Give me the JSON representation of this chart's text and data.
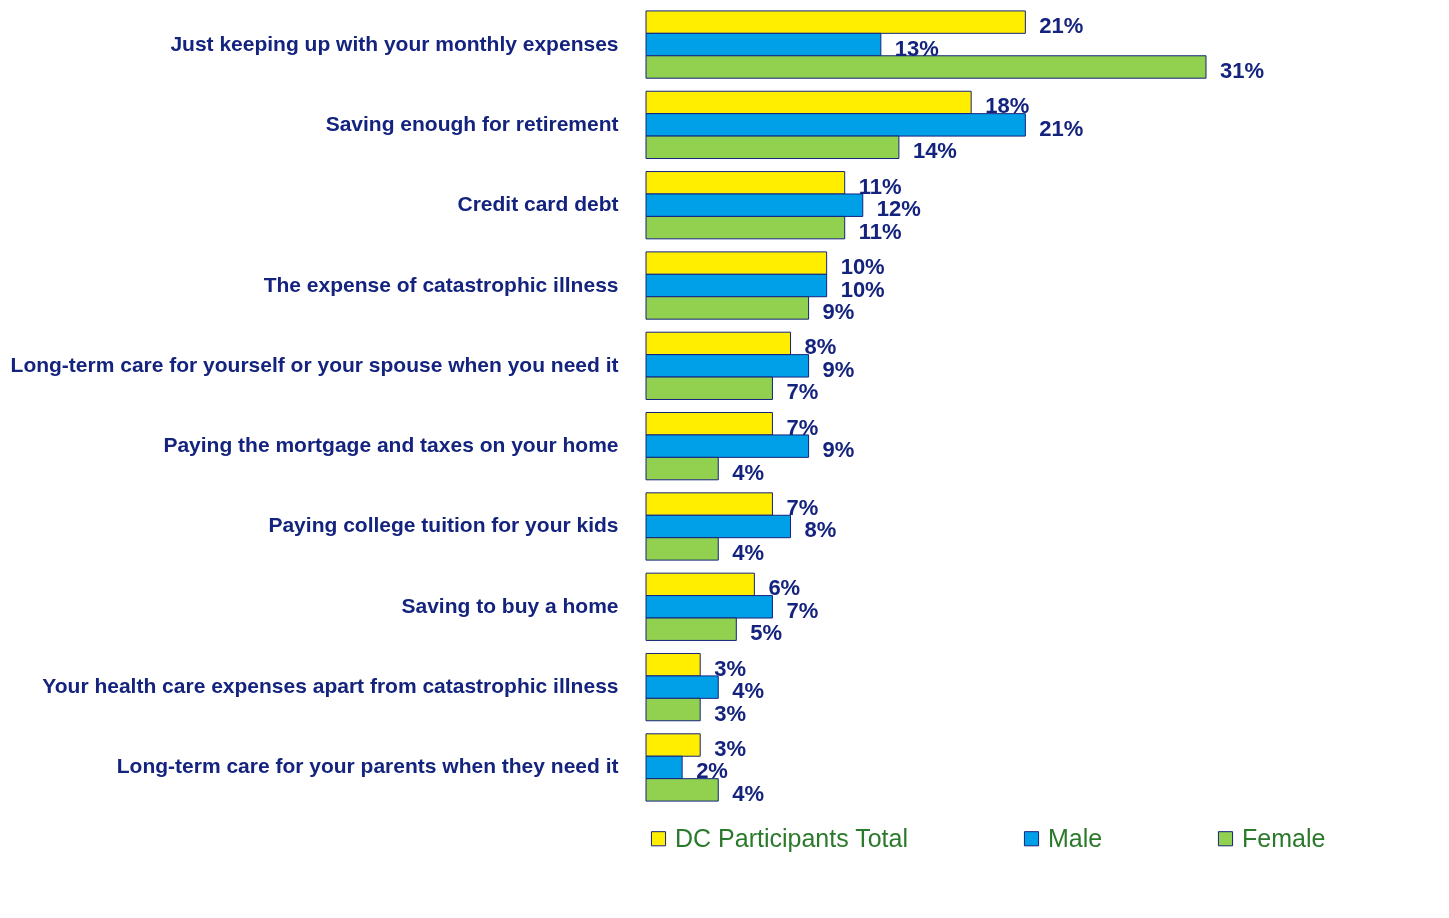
{
  "chart_data": {
    "type": "bar",
    "orientation": "horizontal",
    "categories": [
      "Just keeping up with your monthly expenses",
      "Saving enough for retirement",
      "Credit card debt",
      "The expense of catastrophic illness",
      "Long-term care for yourself or your spouse when you need it",
      "Paying the mortgage and taxes on your home",
      "Paying college tuition for your kids",
      "Saving to buy a home",
      "Your health care expenses apart from catastrophic illness",
      "Long-term care for your parents when they need it"
    ],
    "series": [
      {
        "name": "DC Participants Total",
        "color": "#ffee00",
        "values": [
          21,
          18,
          11,
          10,
          8,
          7,
          7,
          6,
          3,
          3
        ],
        "value_labels": [
          "21%",
          "18%",
          "11%",
          "10%",
          "8%",
          "7%",
          "7%",
          "6%",
          "3%",
          "3%"
        ]
      },
      {
        "name": "Male",
        "color": "#00a0e8",
        "values": [
          13,
          21,
          12,
          10,
          9,
          9,
          8,
          7,
          4,
          2
        ],
        "value_labels": [
          "13%",
          "21%",
          "12%",
          "10%",
          "9%",
          "9%",
          "8%",
          "7%",
          "4%",
          "2%"
        ]
      },
      {
        "name": "Female",
        "color": "#92d050",
        "values": [
          31,
          14,
          11,
          9,
          7,
          4,
          4,
          5,
          3,
          4
        ],
        "value_labels": [
          "31%",
          "14%",
          "11%",
          "9%",
          "7%",
          "4%",
          "4%",
          "5%",
          "3%",
          "4%"
        ]
      }
    ],
    "tick_labels": "y",
    "legend": "bottom",
    "grid": false
  }
}
